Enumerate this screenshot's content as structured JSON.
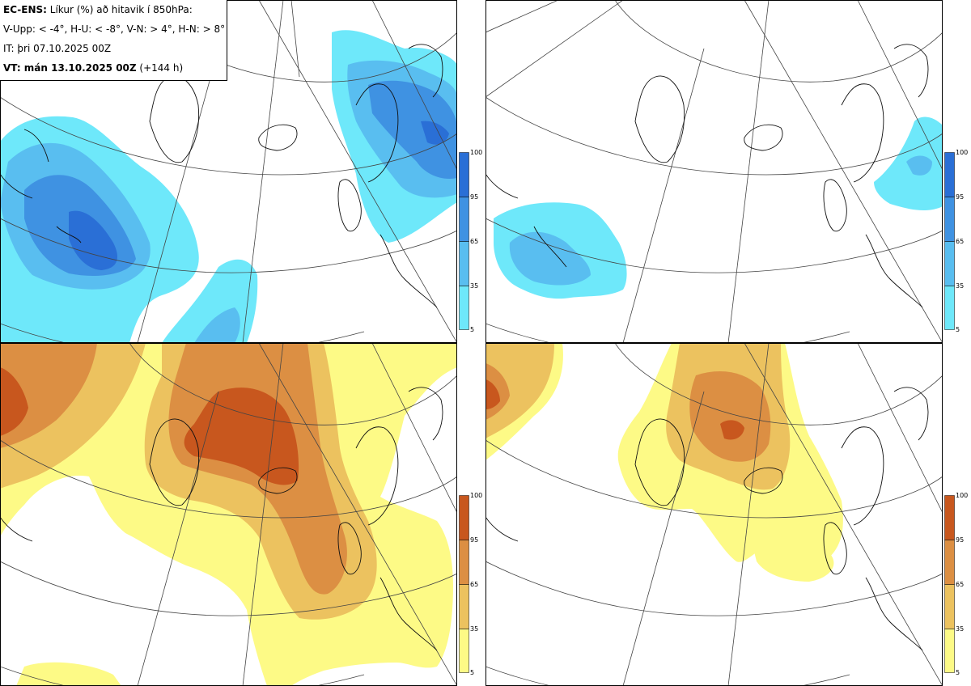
{
  "legend": {
    "model": "EC-ENS:",
    "title": " Líkur (%) að hitavik í 850hPa:",
    "thresholds": "V-Upp: < -4°, H-U: < -8°, V-N: > 4°, H-N: > 8°",
    "init_time": "IT: þri 07.10.2025 00Z",
    "valid_label": "VT: mán 13.10.2025 00Z",
    "lead_time": " (+144 h)"
  },
  "colorbars": {
    "cold": {
      "ticks": [
        "100",
        "95",
        "65",
        "35",
        "5"
      ],
      "colors": [
        "#2a6fd6",
        "#3f92e2",
        "#59bef0",
        "#6ee8fa"
      ]
    },
    "warm": {
      "ticks": [
        "100",
        "95",
        "65",
        "35",
        "5"
      ],
      "colors": [
        "#c8571e",
        "#dc8f43",
        "#ecc25f",
        "#fdfa86"
      ]
    }
  },
  "panels": [
    {
      "id": "V-Upp",
      "description": "Probability temperature anomaly < -4°"
    },
    {
      "id": "H-U",
      "description": "Probability temperature anomaly < -8°"
    },
    {
      "id": "V-N",
      "description": "Probability temperature anomaly > 4°"
    },
    {
      "id": "H-N",
      "description": "Probability temperature anomaly > 8°"
    }
  ]
}
